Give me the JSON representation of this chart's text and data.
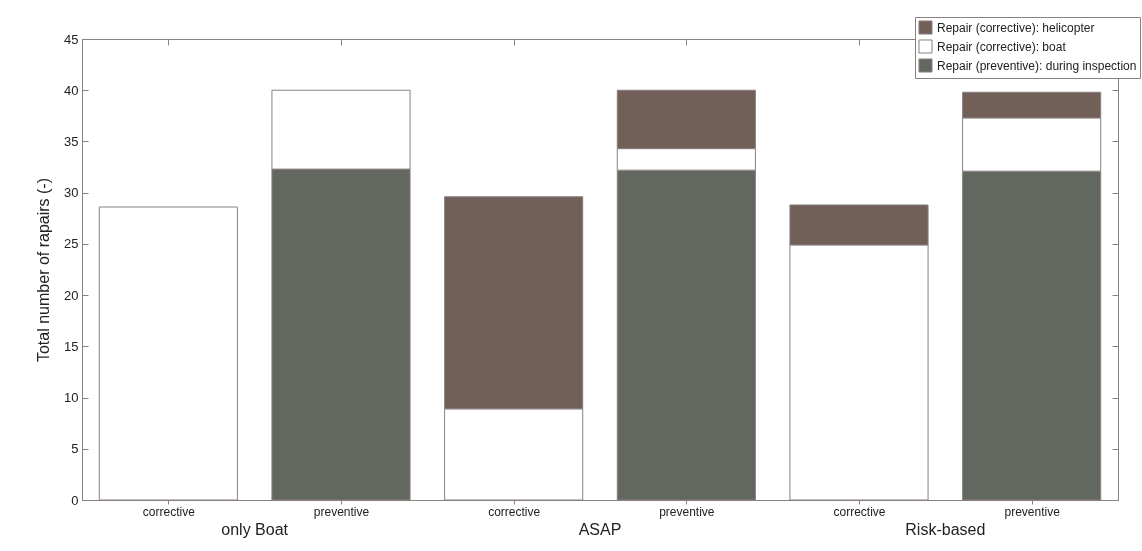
{
  "chart_data": {
    "type": "bar",
    "stacked": true,
    "ylabel": "Total number of rapairs (-)",
    "categories": [
      "corrective",
      "preventive",
      "corrective",
      "preventive",
      "corrective",
      "preventive"
    ],
    "series": [
      {
        "name": "Repair (preventive): during inspection",
        "color": "#626760",
        "values": [
          null,
          32.3,
          null,
          32.2,
          null,
          32.1
        ]
      },
      {
        "name": "Repair (corrective): boat",
        "color": "#ffffff",
        "values": [
          28.6,
          7.7,
          8.9,
          2.1,
          24.9,
          5.2
        ]
      },
      {
        "name": "Repair (corrective): helicopter",
        "color": "#725f58",
        "values": [
          null,
          null,
          20.7,
          5.7,
          3.9,
          2.5
        ]
      }
    ],
    "annotations": [
      "only Boat",
      "ASAP",
      "Risk-based"
    ],
    "ylim": [
      0,
      45
    ],
    "yticks": [
      0,
      5,
      10,
      15,
      20,
      25,
      30,
      35,
      40,
      45
    ],
    "grid": false,
    "legend": "top right"
  }
}
